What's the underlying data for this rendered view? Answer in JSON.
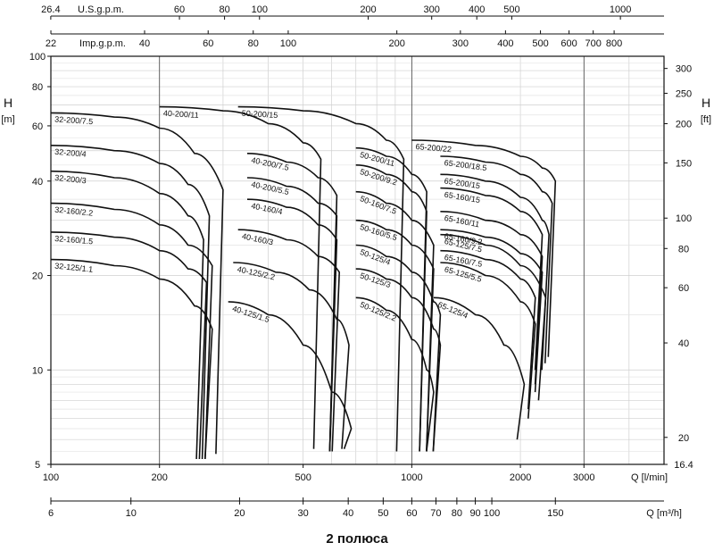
{
  "chart_data": {
    "type": "line",
    "title": "2 полюса",
    "log_x": true,
    "log_y": true,
    "x_axis": {
      "unit": "Q [l/min]",
      "range": [
        100,
        5000
      ],
      "ticks": [
        100,
        200,
        500,
        1000,
        2000,
        3000
      ],
      "tick_labels": [
        "100",
        "200",
        "500",
        "1000",
        "2000",
        "3000"
      ]
    },
    "x_axis_m3h": {
      "unit": "Q [m³/h]",
      "ticks": [
        6,
        10,
        20,
        30,
        40,
        50,
        60,
        70,
        80,
        90,
        100,
        150
      ],
      "tick_labels": [
        "6",
        "10",
        "20",
        "30",
        "40",
        "50",
        "60",
        "70",
        "80",
        "90",
        "100",
        "150"
      ]
    },
    "x_axis_usgpm": {
      "unit": "U.S.g.p.m.",
      "ticks": [
        26.4,
        60,
        80,
        100,
        200,
        300,
        400,
        500,
        1000
      ],
      "tick_labels": [
        "26.4",
        "60",
        "80",
        "100",
        "200",
        "300",
        "400",
        "500",
        "1000"
      ]
    },
    "x_axis_impgpm": {
      "unit": "Imp.g.p.m.",
      "ticks": [
        22,
        40,
        60,
        80,
        100,
        200,
        300,
        400,
        500,
        600,
        700,
        800
      ],
      "tick_labels": [
        "22",
        "40",
        "60",
        "80",
        "100",
        "200",
        "300",
        "400",
        "500",
        "600",
        "700",
        "800"
      ]
    },
    "y_axis": {
      "unit_letter": "H",
      "unit": "[m]",
      "range": [
        5,
        100
      ],
      "ticks": [
        5,
        10,
        20,
        40,
        60,
        80,
        100
      ],
      "tick_labels": [
        "5",
        "10",
        "20",
        "40",
        "60",
        "80",
        "100"
      ]
    },
    "y_axis_ft": {
      "unit_letter": "H",
      "unit": "[ft]",
      "ticks": [
        16.4,
        20,
        40,
        60,
        80,
        100,
        150,
        200,
        250,
        300
      ],
      "tick_labels": [
        "16.4",
        "20",
        "40",
        "60",
        "80",
        "100",
        "150",
        "200",
        "250",
        "300"
      ]
    },
    "grid": true,
    "series": [
      {
        "name": "32-200/7.5",
        "points": [
          [
            100,
            66
          ],
          [
            150,
            64
          ],
          [
            200,
            59
          ],
          [
            250,
            49
          ],
          [
            300,
            37.5
          ]
        ],
        "drop_to": 5.4
      },
      {
        "name": "32-200/4",
        "points": [
          [
            100,
            52
          ],
          [
            150,
            50
          ],
          [
            200,
            45.5
          ],
          [
            240,
            39
          ],
          [
            275,
            31
          ]
        ],
        "drop_to": 5.2
      },
      {
        "name": "32-200/3",
        "points": [
          [
            100,
            43
          ],
          [
            150,
            41
          ],
          [
            200,
            36.5
          ],
          [
            240,
            31
          ],
          [
            265,
            26
          ]
        ],
        "drop_to": 5.2
      },
      {
        "name": "32-160/2.2",
        "points": [
          [
            100,
            34
          ],
          [
            150,
            32.5
          ],
          [
            200,
            29
          ],
          [
            240,
            25
          ],
          [
            280,
            21.5
          ]
        ],
        "drop_to": 5.2
      },
      {
        "name": "32-160/1.5",
        "points": [
          [
            100,
            27.5
          ],
          [
            150,
            26.5
          ],
          [
            200,
            24
          ],
          [
            240,
            21
          ],
          [
            270,
            19
          ]
        ],
        "drop_to": 5.2
      },
      {
        "name": "32-125/1.1",
        "points": [
          [
            100,
            22.5
          ],
          [
            150,
            21.5
          ],
          [
            200,
            19.5
          ],
          [
            250,
            16
          ],
          [
            280,
            13.5
          ]
        ],
        "drop_to": 5.2
      },
      {
        "name": "40-200/11",
        "points": [
          [
            200,
            69
          ],
          [
            300,
            67
          ],
          [
            400,
            61
          ],
          [
            500,
            53
          ],
          [
            560,
            47
          ]
        ],
        "drop_to": 5.6
      },
      {
        "name": "40-200/7.5",
        "points": [
          [
            350,
            49
          ],
          [
            450,
            46
          ],
          [
            550,
            41
          ],
          [
            620,
            36
          ]
        ],
        "drop_to": 5.5
      },
      {
        "name": "40-200/5.5",
        "points": [
          [
            350,
            41
          ],
          [
            450,
            38.5
          ],
          [
            550,
            34
          ],
          [
            620,
            31
          ]
        ],
        "drop_to": 5.5
      },
      {
        "name": "40-160/4",
        "points": [
          [
            350,
            35
          ],
          [
            450,
            33
          ],
          [
            550,
            29
          ],
          [
            620,
            26
          ]
        ],
        "drop_to": 5.5
      },
      {
        "name": "40-160/3",
        "points": [
          [
            330,
            28
          ],
          [
            450,
            26
          ],
          [
            550,
            23
          ],
          [
            630,
            20.5
          ]
        ],
        "drop_to": 5.5
      },
      {
        "name": "40-125/2.2",
        "points": [
          [
            320,
            22
          ],
          [
            420,
            20.5
          ],
          [
            520,
            18
          ],
          [
            620,
            14.5
          ],
          [
            670,
            12
          ]
        ],
        "drop_to": 5.6
      },
      {
        "name": "40-125/1.5",
        "points": [
          [
            310,
            16.5
          ],
          [
            400,
            15
          ],
          [
            500,
            12
          ],
          [
            600,
            8.5
          ],
          [
            680,
            6.5
          ]
        ],
        "drop_to": 5.6
      },
      {
        "name": "50-200/15",
        "points": [
          [
            330,
            69
          ],
          [
            500,
            67
          ],
          [
            700,
            61
          ],
          [
            850,
            54
          ],
          [
            950,
            47
          ]
        ],
        "drop_to": 5.5
      },
      {
        "name": "50-200/11",
        "points": [
          [
            700,
            51
          ],
          [
            850,
            48
          ],
          [
            1000,
            42
          ],
          [
            1100,
            37
          ]
        ],
        "drop_to": 5.5
      },
      {
        "name": "50-200/9.2",
        "points": [
          [
            700,
            45
          ],
          [
            850,
            42
          ],
          [
            1000,
            37
          ],
          [
            1100,
            32
          ]
        ],
        "drop_to": 5.5
      },
      {
        "name": "50-160/7.5",
        "points": [
          [
            700,
            37
          ],
          [
            850,
            34
          ],
          [
            1000,
            30
          ],
          [
            1150,
            25
          ]
        ],
        "drop_to": 5.5
      },
      {
        "name": "50-160/5.5",
        "points": [
          [
            700,
            30
          ],
          [
            850,
            28
          ],
          [
            1000,
            25
          ],
          [
            1150,
            21
          ]
        ],
        "drop_to": 5.5
      },
      {
        "name": "50-125/4",
        "points": [
          [
            700,
            25
          ],
          [
            850,
            23
          ],
          [
            1000,
            20.5
          ],
          [
            1150,
            16.5
          ],
          [
            1200,
            15
          ]
        ],
        "drop_to": 5.5
      },
      {
        "name": "50-125/3",
        "points": [
          [
            700,
            21
          ],
          [
            850,
            19.5
          ],
          [
            1000,
            17
          ],
          [
            1150,
            13.5
          ],
          [
            1200,
            12
          ]
        ],
        "drop_to": 5.5
      },
      {
        "name": "50-125/2.2",
        "points": [
          [
            700,
            17
          ],
          [
            850,
            15.5
          ],
          [
            1000,
            12.5
          ],
          [
            1100,
            10
          ],
          [
            1150,
            8.5
          ]
        ],
        "drop_to": 5.5
      },
      {
        "name": "65-200/22",
        "points": [
          [
            1000,
            54
          ],
          [
            1500,
            52
          ],
          [
            2000,
            48
          ],
          [
            2300,
            44
          ],
          [
            2500,
            40
          ]
        ],
        "drop_to": 11
      },
      {
        "name": "65-200/18.5",
        "points": [
          [
            1200,
            48
          ],
          [
            1600,
            46
          ],
          [
            2000,
            42
          ],
          [
            2300,
            37
          ],
          [
            2450,
            34
          ]
        ],
        "drop_to": 10.5
      },
      {
        "name": "65-200/15",
        "points": [
          [
            1200,
            42
          ],
          [
            1600,
            40
          ],
          [
            2000,
            35.5
          ],
          [
            2300,
            30
          ],
          [
            2400,
            27
          ]
        ],
        "drop_to": 10
      },
      {
        "name": "65-160/15",
        "points": [
          [
            1200,
            38
          ],
          [
            1600,
            36
          ],
          [
            2000,
            32
          ],
          [
            2300,
            27
          ]
        ],
        "drop_to": 10
      },
      {
        "name": "65-160/11",
        "points": [
          [
            1200,
            32
          ],
          [
            1600,
            30
          ],
          [
            2000,
            27
          ],
          [
            2300,
            23
          ]
        ],
        "drop_to": 9
      },
      {
        "name": "65-160/9.2",
        "points": [
          [
            1200,
            28
          ],
          [
            1600,
            26.5
          ],
          [
            2000,
            23.5
          ],
          [
            2300,
            20.5
          ]
        ],
        "drop_to": 8.5
      },
      {
        "name": "65-160/7.5",
        "points": [
          [
            1200,
            24
          ],
          [
            1600,
            22.5
          ],
          [
            2000,
            19.5
          ],
          [
            2200,
            17
          ]
        ],
        "drop_to": 7.5
      },
      {
        "name": "65-125/7.5",
        "points": [
          [
            1200,
            27
          ],
          [
            1600,
            25
          ],
          [
            2000,
            21.5
          ],
          [
            2350,
            17
          ]
        ],
        "drop_to": 8
      },
      {
        "name": "65-125/5.5",
        "points": [
          [
            1200,
            22
          ],
          [
            1600,
            20
          ],
          [
            2000,
            16.5
          ],
          [
            2200,
            14
          ]
        ],
        "drop_to": 7
      },
      {
        "name": "65-125/4",
        "points": [
          [
            1150,
            17
          ],
          [
            1500,
            15
          ],
          [
            1800,
            12
          ],
          [
            2050,
            9
          ]
        ],
        "drop_to": 6
      }
    ]
  }
}
